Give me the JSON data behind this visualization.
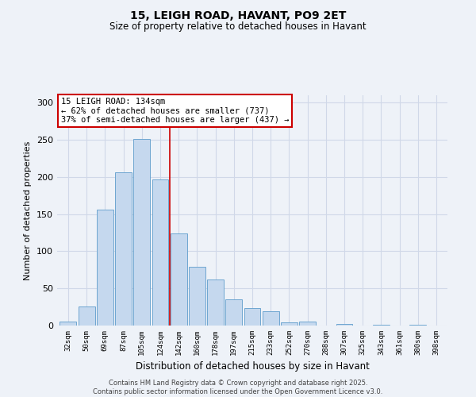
{
  "title1": "15, LEIGH ROAD, HAVANT, PO9 2ET",
  "title2": "Size of property relative to detached houses in Havant",
  "xlabel": "Distribution of detached houses by size in Havant",
  "ylabel": "Number of detached properties",
  "categories": [
    "32sqm",
    "50sqm",
    "69sqm",
    "87sqm",
    "105sqm",
    "124sqm",
    "142sqm",
    "160sqm",
    "178sqm",
    "197sqm",
    "215sqm",
    "233sqm",
    "252sqm",
    "270sqm",
    "288sqm",
    "307sqm",
    "325sqm",
    "343sqm",
    "361sqm",
    "380sqm",
    "398sqm"
  ],
  "values": [
    5,
    26,
    156,
    206,
    251,
    197,
    124,
    79,
    62,
    35,
    23,
    19,
    4,
    5,
    0,
    2,
    0,
    1,
    0,
    1,
    0
  ],
  "bar_color": "#c5d8ee",
  "bar_edge_color": "#6ea6d0",
  "vline_x": 5.5,
  "vline_color": "#cc0000",
  "annotation_title": "15 LEIGH ROAD: 134sqm",
  "annotation_line1": "← 62% of detached houses are smaller (737)",
  "annotation_line2": "37% of semi-detached houses are larger (437) →",
  "annotation_box_color": "#ffffff",
  "annotation_box_edge": "#cc0000",
  "ylim": [
    0,
    310
  ],
  "yticks": [
    0,
    50,
    100,
    150,
    200,
    250,
    300
  ],
  "footer1": "Contains HM Land Registry data © Crown copyright and database right 2025.",
  "footer2": "Contains public sector information licensed under the Open Government Licence v3.0.",
  "background_color": "#eef2f8",
  "grid_color": "#d0d8e8"
}
